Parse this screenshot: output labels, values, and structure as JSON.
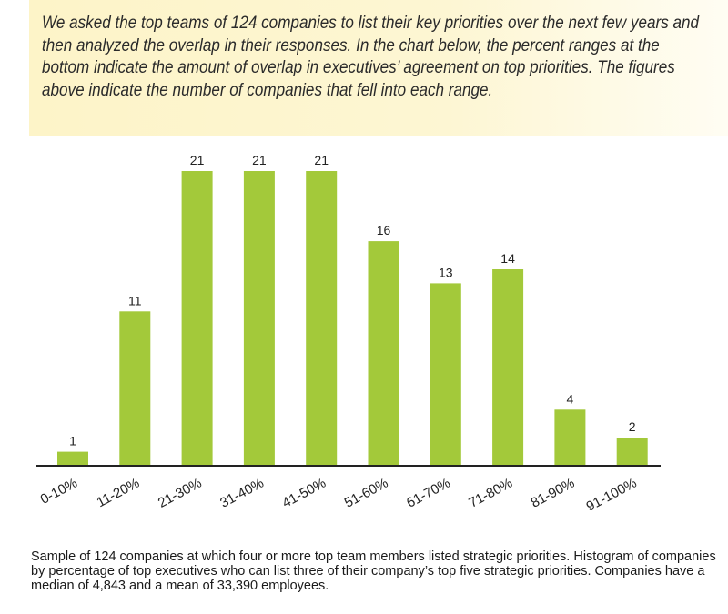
{
  "intro": {
    "text": "We asked the top teams of 124 companies to list their key priorities over the next few years and then analyzed the overlap in their responses. In the chart below, the percent ranges at the bottom indicate the amount of overlap in executives’ agreement on top priorities. The figures above indicate the number of companies that fell into each range."
  },
  "caption": {
    "text": "Sample of 124 companies at which four or more top team members listed strategic priorities. Histogram of companies by percentage of top executives who can list three of their company’s top five strategic priorities. Companies have a median of 4,843 and a mean of 33,390 employees."
  },
  "chart_data": {
    "type": "bar",
    "categories": [
      "0-10%",
      "11-20%",
      "21-30%",
      "31-40%",
      "41-50%",
      "51-60%",
      "61-70%",
      "71-80%",
      "81-90%",
      "91-100%"
    ],
    "values": [
      1,
      11,
      21,
      21,
      21,
      16,
      13,
      14,
      4,
      2
    ],
    "title": "",
    "xlabel": "",
    "ylabel": "",
    "ylim": [
      0,
      21
    ],
    "grid": false,
    "data_labels": true,
    "bar_color": "#a3c93a",
    "axis_color": "#222222"
  }
}
